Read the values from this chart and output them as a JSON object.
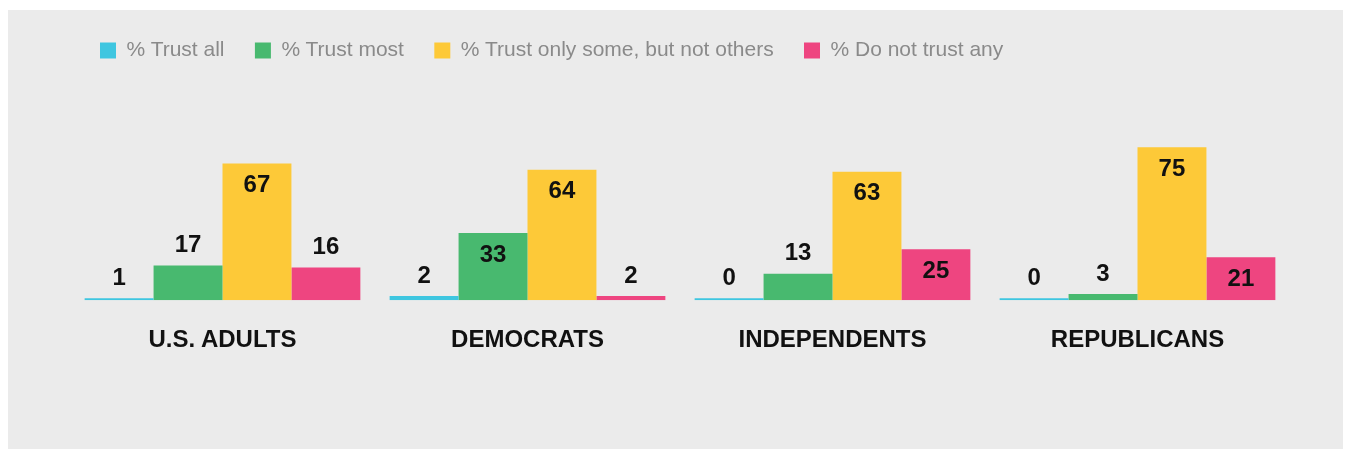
{
  "chart_data": {
    "type": "bar",
    "categories": [
      "U.S. ADULTS",
      "DEMOCRATS",
      "INDEPENDENTS",
      "REPUBLICANS"
    ],
    "series": [
      {
        "name": "% Trust all",
        "color": "#3ec6e0",
        "values": [
          1,
          2,
          0,
          0
        ]
      },
      {
        "name": "% Trust most",
        "color": "#48b96f",
        "values": [
          17,
          33,
          13,
          3
        ]
      },
      {
        "name": "% Trust only some, but not others",
        "color": "#fdc938",
        "values": [
          67,
          64,
          63,
          75
        ]
      },
      {
        "name": "% Do not trust any",
        "color": "#ee4580",
        "values": [
          16,
          2,
          25,
          21
        ]
      }
    ],
    "data_labels": true,
    "legend": "top left",
    "grid": false
  }
}
